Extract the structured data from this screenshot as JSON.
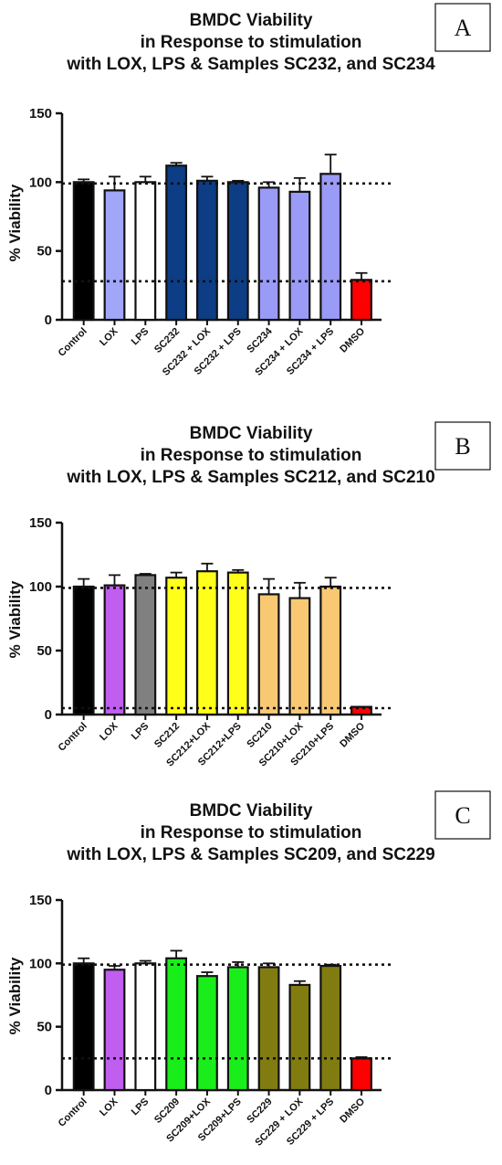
{
  "chart_data": [
    {
      "type": "bar",
      "panel_label": "A",
      "title_lines": [
        "BMDC Viability",
        "in Response to stimulation",
        "with LOX, LPS & Samples SC232, and SC234"
      ],
      "ylabel": "% Viability",
      "xlabel": "",
      "ylim": [
        0,
        150
      ],
      "yticks": [
        0,
        50,
        100,
        150
      ],
      "categories": [
        "Control",
        "LOX",
        "LPS",
        "SC232",
        "SC232 + LOX",
        "SC232 + LPS",
        "SC234",
        "SC234 + LOX",
        "SC234 + LPS",
        "DMSO"
      ],
      "values": [
        100,
        94,
        100,
        112,
        101,
        100,
        96,
        93,
        106,
        29
      ],
      "errors": [
        2,
        10,
        4,
        2,
        3,
        1,
        4,
        10,
        14,
        5
      ],
      "colors": [
        "#000000",
        "#a2a6f8",
        "#ffffff",
        "#0d3d85",
        "#0d3d85",
        "#0d3d85",
        "#9a9af7",
        "#9a9af7",
        "#9a9af7",
        "#ff0000"
      ],
      "reference_lines": [
        99,
        28
      ],
      "grid": false
    },
    {
      "type": "bar",
      "panel_label": "B",
      "title_lines": [
        "BMDC Viability",
        "in Response to stimulation",
        "with LOX, LPS & Samples SC212, and SC210"
      ],
      "ylabel": "% Viability",
      "xlabel": "",
      "ylim": [
        0,
        150
      ],
      "yticks": [
        0,
        50,
        100,
        150
      ],
      "categories": [
        "Control",
        "LOX",
        "LPS",
        "SC212",
        "SC212+LOX",
        "SC212+LPS",
        "SC210",
        "SC210+LOX",
        "SC210+LPS",
        "DMSO"
      ],
      "values": [
        100,
        101,
        109,
        107,
        112,
        111,
        94,
        91,
        100,
        6
      ],
      "errors": [
        6,
        8,
        1,
        4,
        6,
        2,
        12,
        12,
        7,
        0
      ],
      "colors": [
        "#000000",
        "#c05ef0",
        "#808080",
        "#ffff1a",
        "#ffff1a",
        "#ffff1a",
        "#f8c873",
        "#f8c873",
        "#f8c873",
        "#ff0000"
      ],
      "reference_lines": [
        99,
        5
      ],
      "grid": false
    },
    {
      "type": "bar",
      "panel_label": "C",
      "title_lines": [
        "BMDC Viability",
        "in Response to stimulation",
        "with LOX, LPS & Samples SC209, and SC229"
      ],
      "ylabel": "% Viability",
      "xlabel": "",
      "ylim": [
        0,
        150
      ],
      "yticks": [
        0,
        50,
        100,
        150
      ],
      "categories": [
        "Control",
        "LOX",
        "LPS",
        "SC209",
        "SC209+LOX",
        "SC209+LPS",
        "SC229",
        "SC229 + LOX",
        "SC229 + LPS",
        "DMSO"
      ],
      "values": [
        100,
        95,
        100,
        104,
        90,
        97,
        97,
        83,
        98,
        25
      ],
      "errors": [
        4,
        3,
        2,
        6,
        3,
        4,
        3,
        3,
        1,
        1
      ],
      "colors": [
        "#000000",
        "#c05ef0",
        "#ffffff",
        "#1aee1a",
        "#1aee1a",
        "#1aee1a",
        "#817c10",
        "#817c10",
        "#817c10",
        "#ff0000"
      ],
      "reference_lines": [
        99,
        25
      ],
      "grid": false
    }
  ]
}
